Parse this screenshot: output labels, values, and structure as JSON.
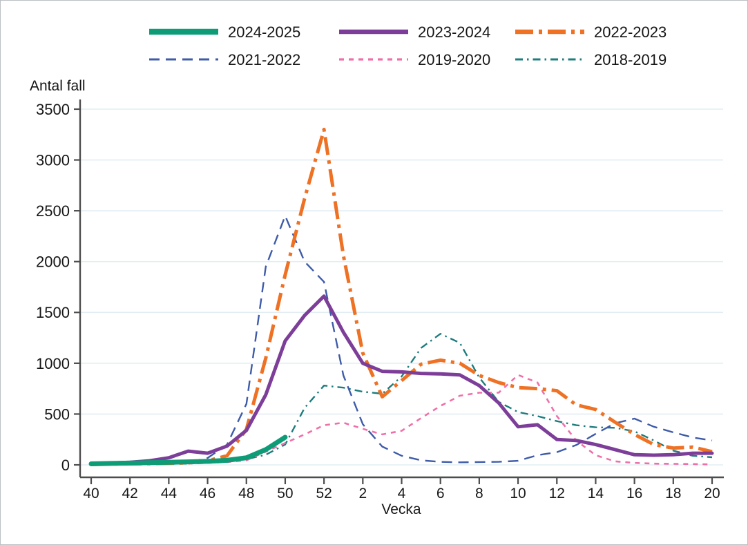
{
  "colors": {
    "background": "#ffffff",
    "border": "#bcc0c4",
    "grid": "#e2edf3",
    "axis": "#4d4d4d",
    "text": "#161616"
  },
  "chart_data": {
    "type": "line",
    "title": "",
    "xlabel": "Vecka",
    "ylabel": "Antal fall",
    "x_categories": [
      40,
      41,
      42,
      43,
      44,
      45,
      46,
      47,
      48,
      49,
      50,
      51,
      52,
      1,
      2,
      3,
      4,
      5,
      6,
      7,
      8,
      9,
      10,
      11,
      12,
      13,
      14,
      15,
      16,
      17,
      18,
      19,
      20
    ],
    "x_tick_every": 2,
    "y_ticks": [
      0,
      500,
      1000,
      1500,
      2000,
      2500,
      3000,
      3500
    ],
    "ylim": [
      0,
      3500
    ],
    "grid": "horizontal",
    "legend_position": "top",
    "series": [
      {
        "name": "2024-2025",
        "color": "#0e9c77",
        "dash": "solid",
        "width": 7,
        "values": [
          10,
          14,
          18,
          22,
          26,
          30,
          35,
          45,
          70,
          150,
          272,
          null,
          null,
          null,
          null,
          null,
          null,
          null,
          null,
          null,
          null,
          null,
          null,
          null,
          null,
          null,
          null,
          null,
          null,
          null,
          null,
          null,
          null
        ]
      },
      {
        "name": "2023-2024",
        "color": "#7d3e99",
        "dash": "solid",
        "width": 5,
        "values": [
          15,
          18,
          25,
          40,
          70,
          135,
          115,
          185,
          340,
          690,
          1220,
          1470,
          1660,
          1305,
          1000,
          920,
          915,
          900,
          895,
          885,
          780,
          610,
          375,
          395,
          250,
          240,
          200,
          150,
          100,
          95,
          100,
          115,
          115
        ]
      },
      {
        "name": "2022-2023",
        "color": "#ee7124",
        "dash": "26 8 5 8",
        "width": 5,
        "values": [
          5,
          8,
          10,
          12,
          15,
          20,
          40,
          90,
          350,
          1050,
          1870,
          2620,
          3300,
          2060,
          1100,
          670,
          830,
          990,
          1030,
          1000,
          880,
          810,
          760,
          750,
          730,
          590,
          545,
          420,
          300,
          200,
          165,
          175,
          130
        ]
      },
      {
        "name": "2021-2022",
        "color": "#3e5ba9",
        "dash": "15 9",
        "width": 2.4,
        "values": [
          5,
          6,
          8,
          10,
          12,
          20,
          68,
          200,
          600,
          1950,
          2450,
          2000,
          1800,
          880,
          400,
          180,
          90,
          45,
          30,
          25,
          28,
          30,
          40,
          95,
          125,
          195,
          305,
          410,
          455,
          375,
          320,
          270,
          240
        ]
      },
      {
        "name": "2019-2020",
        "color": "#f06fa9",
        "dash": "7 7",
        "width": 2.6,
        "values": [
          5,
          6,
          8,
          10,
          12,
          15,
          20,
          28,
          45,
          130,
          215,
          300,
          390,
          415,
          355,
          300,
          335,
          460,
          580,
          680,
          710,
          710,
          885,
          810,
          480,
          240,
          95,
          35,
          20,
          12,
          10,
          8,
          5
        ]
      },
      {
        "name": "2018-2019",
        "color": "#1d7c7c",
        "dash": "11 6 2.5 6",
        "width": 2.4,
        "values": [
          5,
          6,
          7,
          8,
          10,
          12,
          20,
          30,
          55,
          100,
          200,
          560,
          780,
          760,
          720,
          700,
          870,
          1150,
          1290,
          1200,
          860,
          620,
          520,
          480,
          430,
          390,
          370,
          365,
          330,
          240,
          140,
          90,
          75
        ]
      }
    ]
  }
}
